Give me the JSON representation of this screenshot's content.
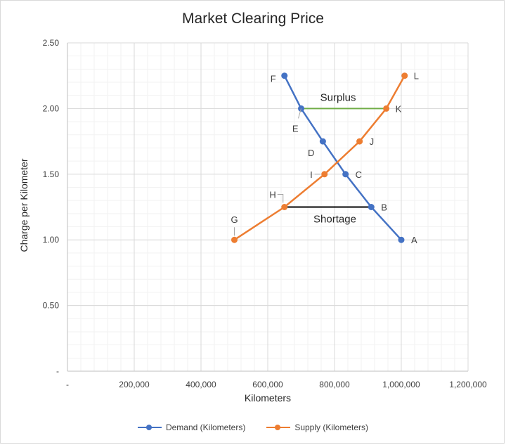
{
  "chart_data": {
    "type": "line",
    "title": "Market Clearing Price",
    "xlabel": "Kilometers",
    "ylabel": "Charge per Kilometer",
    "xlim": [
      0,
      1200000
    ],
    "ylim": [
      0,
      2.5
    ],
    "x_ticks": [
      {
        "value": 0,
        "label": "-"
      },
      {
        "value": 200000,
        "label": "200,000"
      },
      {
        "value": 400000,
        "label": "400,000"
      },
      {
        "value": 600000,
        "label": "600,000"
      },
      {
        "value": 800000,
        "label": "800,000"
      },
      {
        "value": 1000000,
        "label": "1,000,000"
      },
      {
        "value": 1200000,
        "label": "1,200,000"
      }
    ],
    "y_ticks": [
      {
        "value": 0,
        "label": "-"
      },
      {
        "value": 0.5,
        "label": "0.50"
      },
      {
        "value": 1.0,
        "label": "1.00"
      },
      {
        "value": 1.5,
        "label": "1.50"
      },
      {
        "value": 2.0,
        "label": "2.00"
      },
      {
        "value": 2.5,
        "label": "2.50"
      }
    ],
    "grid": true,
    "legend_position": "bottom",
    "series": [
      {
        "name": "Demand (Kilometers)",
        "color": "#4472c4",
        "points": [
          {
            "x": 1000000,
            "y": 1.0,
            "label": "A"
          },
          {
            "x": 910000,
            "y": 1.25,
            "label": "B"
          },
          {
            "x": 833000,
            "y": 1.5,
            "label": "C"
          },
          {
            "x": 765000,
            "y": 1.75,
            "label": "D"
          },
          {
            "x": 700000,
            "y": 2.0,
            "label": "E"
          },
          {
            "x": 650000,
            "y": 2.25,
            "label": "F"
          }
        ]
      },
      {
        "name": "Supply (Kilometers)",
        "color": "#ed7d31",
        "points": [
          {
            "x": 500000,
            "y": 1.0,
            "label": "G"
          },
          {
            "x": 650000,
            "y": 1.25,
            "label": "H"
          },
          {
            "x": 770000,
            "y": 1.5,
            "label": "I"
          },
          {
            "x": 875000,
            "y": 1.75,
            "label": "J"
          },
          {
            "x": 955000,
            "y": 2.0,
            "label": "K"
          },
          {
            "x": 1010000,
            "y": 2.25,
            "label": "L"
          }
        ]
      }
    ],
    "annotations": [
      {
        "text": "Surplus",
        "x1": 700000,
        "x2": 955000,
        "y": 2.0,
        "color": "#70ad47"
      },
      {
        "text": "Shortage",
        "x1": 650000,
        "x2": 910000,
        "y": 1.25,
        "color": "#000000"
      }
    ]
  }
}
